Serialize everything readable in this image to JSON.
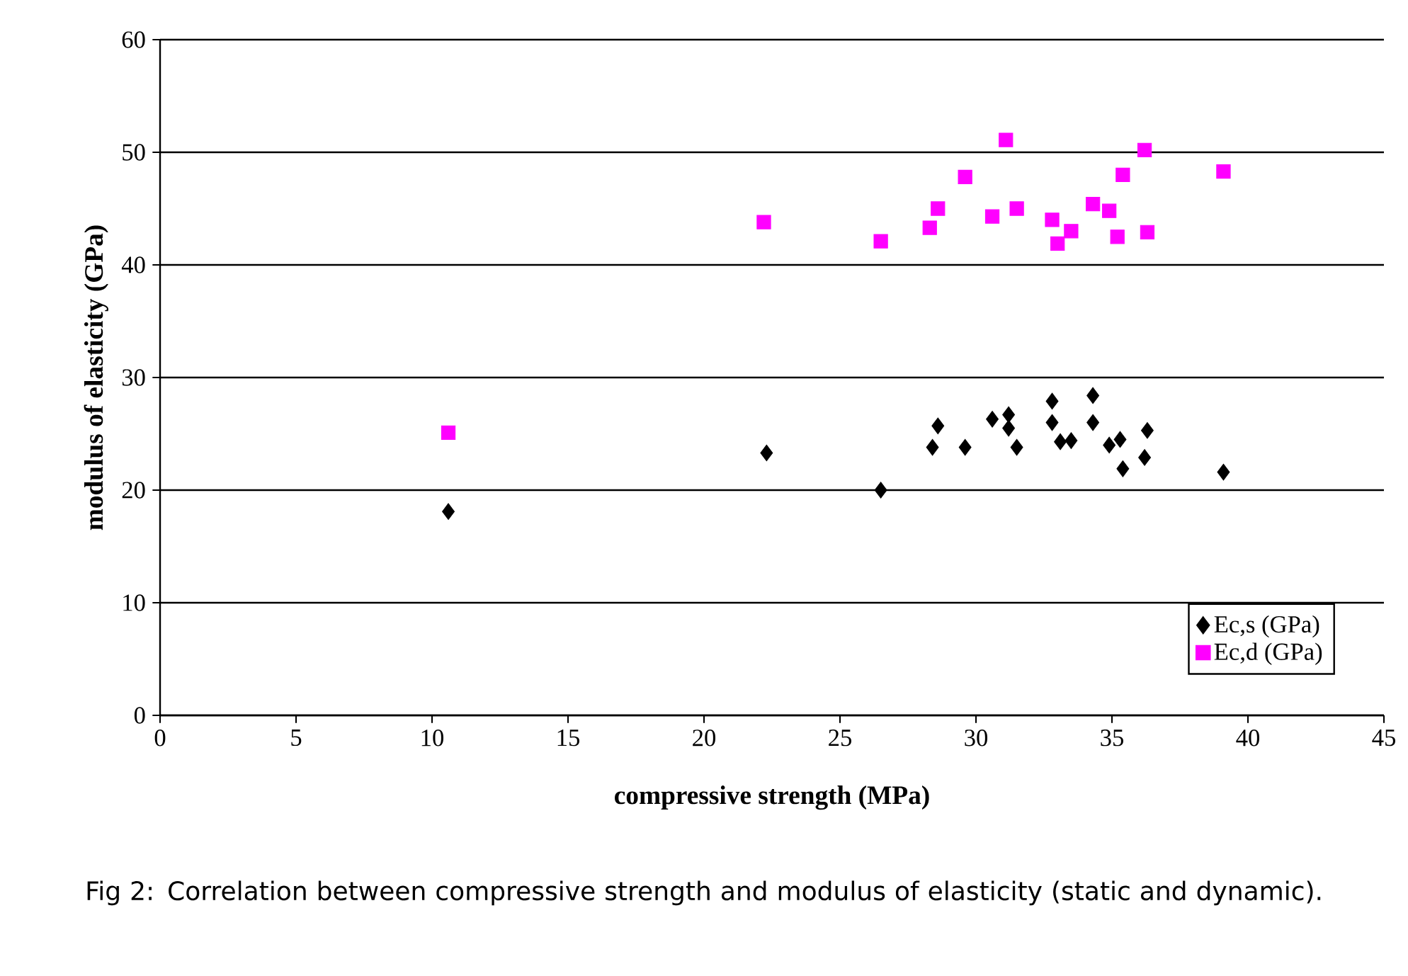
{
  "chart_data": {
    "type": "scatter",
    "xlabel": "compressive strength (MPa)",
    "ylabel": "modulus of elasticity (GPa)",
    "annotations": [
      "Fig 2: Correlation between compressive strength and modulus of elasticity (static and dynamic)."
    ],
    "xlim": [
      0,
      45
    ],
    "xticks": [
      0,
      5,
      10,
      15,
      20,
      25,
      30,
      35,
      40,
      45
    ],
    "ylim": [
      0,
      60
    ],
    "yticks": [
      0,
      10,
      20,
      30,
      40,
      50,
      60
    ],
    "grid": "y",
    "legend": "bottom right",
    "series": [
      {
        "name": "Ec,s (GPa)",
        "color": "#000000",
        "marker": "diamond",
        "x": [
          10.6,
          22.3,
          26.5,
          28.4,
          28.6,
          29.6,
          30.6,
          31.2,
          31.2,
          31.5,
          32.8,
          32.8,
          33.1,
          33.5,
          34.3,
          34.3,
          34.9,
          35.3,
          35.4,
          36.2,
          36.3,
          39.1
        ],
        "values": [
          18.1,
          23.3,
          20.0,
          23.8,
          25.7,
          23.8,
          26.3,
          26.7,
          25.5,
          23.8,
          27.9,
          26.0,
          24.3,
          24.4,
          28.4,
          26.0,
          24.0,
          24.5,
          21.9,
          22.9,
          25.3,
          21.6
        ]
      },
      {
        "name": "Ec,d (GPa)",
        "color": "#ff00ff",
        "marker": "square",
        "x": [
          10.6,
          22.2,
          26.5,
          28.3,
          28.6,
          29.6,
          30.6,
          31.1,
          31.5,
          32.8,
          33.0,
          33.5,
          34.3,
          34.9,
          35.2,
          35.4,
          36.2,
          36.3,
          39.1
        ],
        "values": [
          25.1,
          43.8,
          42.1,
          43.3,
          45.0,
          47.8,
          44.3,
          51.1,
          45.0,
          44.0,
          41.9,
          43.0,
          45.4,
          44.8,
          42.5,
          48.0,
          50.2,
          42.9,
          48.3
        ]
      }
    ]
  }
}
